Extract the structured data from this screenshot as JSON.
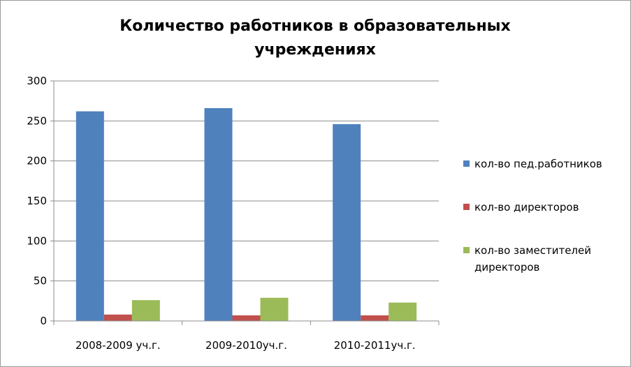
{
  "chart_data": {
    "type": "bar",
    "title": "Количество работников в образовательных\nучреждениях",
    "categories": [
      "2008-2009 уч.г.",
      "2009-2010уч.г.",
      "2010-2011уч.г."
    ],
    "series": [
      {
        "name": "кол-во пед.работников",
        "values": [
          262,
          266,
          246
        ],
        "color": "#4F81BD"
      },
      {
        "name": "кол-во директоров",
        "values": [
          8,
          7,
          7
        ],
        "color": "#C0504D"
      },
      {
        "name": "кол-во заместителей директоров",
        "values": [
          26,
          29,
          23
        ],
        "color": "#9BBB59"
      }
    ],
    "yticks": [
      "0",
      "50",
      "100",
      "150",
      "200",
      "250",
      "300"
    ],
    "ylim": [
      0,
      300
    ],
    "grid": true,
    "legend_position": "right"
  }
}
